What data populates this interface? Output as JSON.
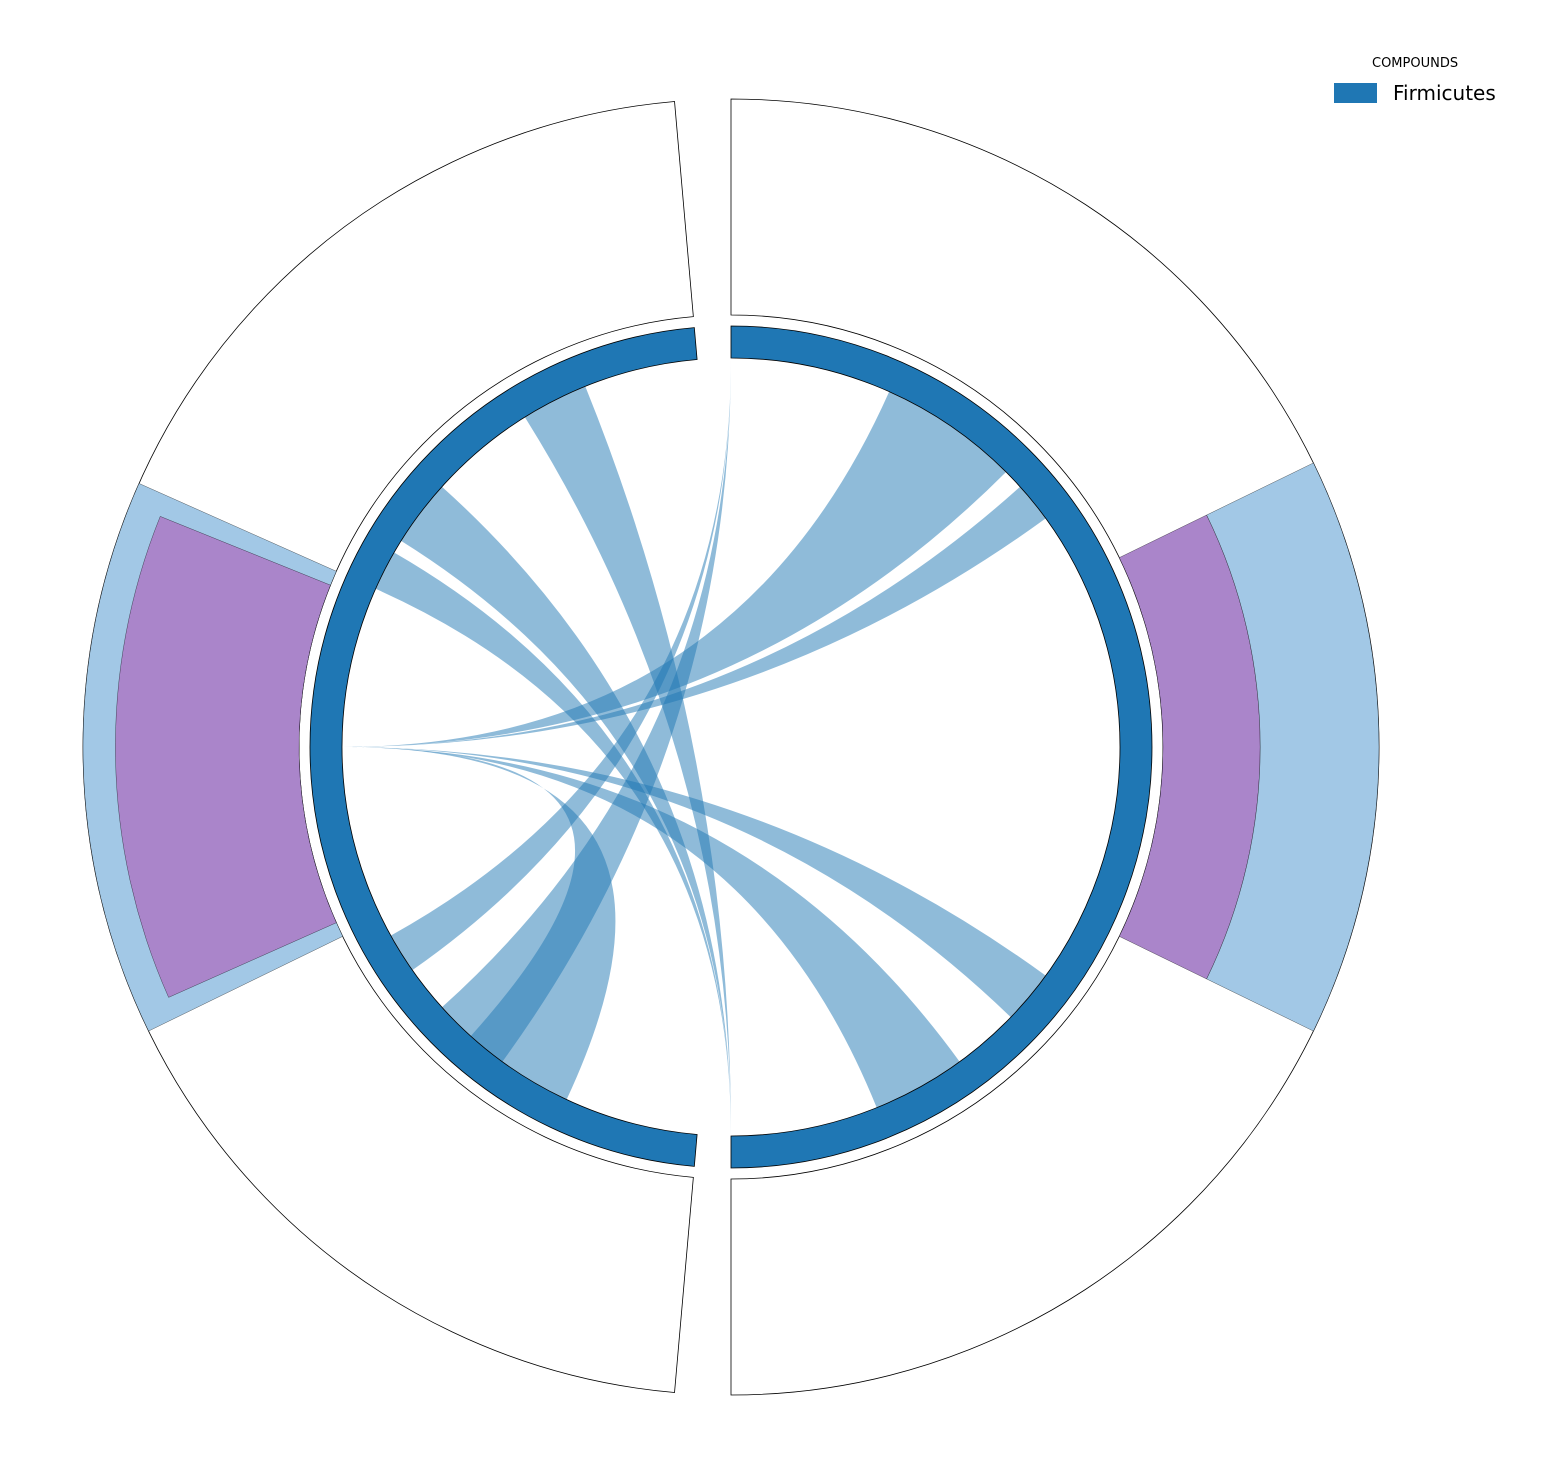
{
  "chart_data": {
    "type": "circos",
    "legend": {
      "title": "COMPOUNDS",
      "placement": "top-right",
      "entries": [
        {
          "label": "Firmicutes",
          "color": "#1f77b4"
        }
      ]
    },
    "sectors": [
      {
        "id": "left",
        "start_deg": 185,
        "end_deg": 355,
        "color": "#1f77b4"
      },
      {
        "id": "right",
        "start_deg": 0,
        "end_deg": 180,
        "color": "#1f77b4"
      }
    ],
    "outer_tracks": [
      {
        "sector": "left",
        "bars": [
          {
            "start_deg": 244,
            "end_deg": 294,
            "inner": 0.0,
            "outer": 1.0,
            "color": "#a2c8e6"
          },
          {
            "start_deg": 246,
            "end_deg": 292,
            "inner": 0.0,
            "outer": 0.85,
            "color": "#aa85ca"
          }
        ]
      },
      {
        "sector": "right",
        "bars": [
          {
            "start_deg": 64,
            "end_deg": 116,
            "inner": 0.0,
            "outer": 0.45,
            "color": "#aa85ca"
          },
          {
            "start_deg": 64,
            "end_deg": 116,
            "inner": 0.45,
            "outer": 1.0,
            "color": "#a2c8e6"
          }
        ]
      }
    ],
    "links": [
      {
        "from": [
          328,
          338
        ],
        "to": [
          180,
          180
        ]
      },
      {
        "from": [
          302,
          312
        ],
        "to": [
          180,
          180
        ]
      },
      {
        "from": [
          294,
          300
        ],
        "to": [
          180,
          180
        ]
      },
      {
        "from": [
          270,
          270
        ],
        "to": [
          24,
          45
        ]
      },
      {
        "from": [
          270,
          270
        ],
        "to": [
          48,
          54
        ]
      },
      {
        "from": [
          270,
          270
        ],
        "to": [
          90,
          90
        ]
      },
      {
        "from": [
          270,
          270
        ],
        "to": [
          126,
          134
        ]
      },
      {
        "from": [
          270,
          270
        ],
        "to": [
          144,
          158
        ]
      },
      {
        "from": [
          270,
          270
        ],
        "to": [
          205,
          222
        ]
      },
      {
        "from": [
          235,
          241
        ],
        "to": [
          0,
          0
        ]
      },
      {
        "from": [
          216,
          228
        ],
        "to": [
          0,
          0
        ]
      }
    ],
    "link_color": "#1f77b4"
  }
}
